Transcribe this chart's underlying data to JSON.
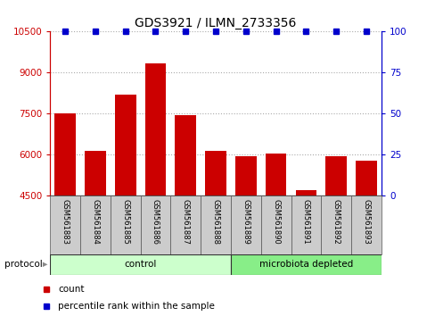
{
  "title": "GDS3921 / ILMN_2733356",
  "samples": [
    "GSM561883",
    "GSM561884",
    "GSM561885",
    "GSM561886",
    "GSM561887",
    "GSM561888",
    "GSM561889",
    "GSM561890",
    "GSM561891",
    "GSM561892",
    "GSM561893"
  ],
  "counts": [
    7500,
    6150,
    8200,
    9350,
    7450,
    6150,
    5950,
    6050,
    4700,
    5950,
    5800
  ],
  "ylim_left": [
    4500,
    10500
  ],
  "ylim_right": [
    0,
    100
  ],
  "yticks_left": [
    4500,
    6000,
    7500,
    9000,
    10500
  ],
  "yticks_right": [
    0,
    25,
    50,
    75,
    100
  ],
  "bar_color": "#cc0000",
  "dot_color": "#0000cc",
  "n_control": 6,
  "control_label": "control",
  "microbiota_label": "microbiota depleted",
  "protocol_label": "protocol",
  "legend_count_label": "count",
  "legend_percentile_label": "percentile rank within the sample",
  "control_color": "#ccffcc",
  "microbiota_color": "#88ee88",
  "left_axis_color": "#cc0000",
  "right_axis_color": "#0000cc",
  "tick_bg_color": "#cccccc",
  "title_fontsize": 10
}
